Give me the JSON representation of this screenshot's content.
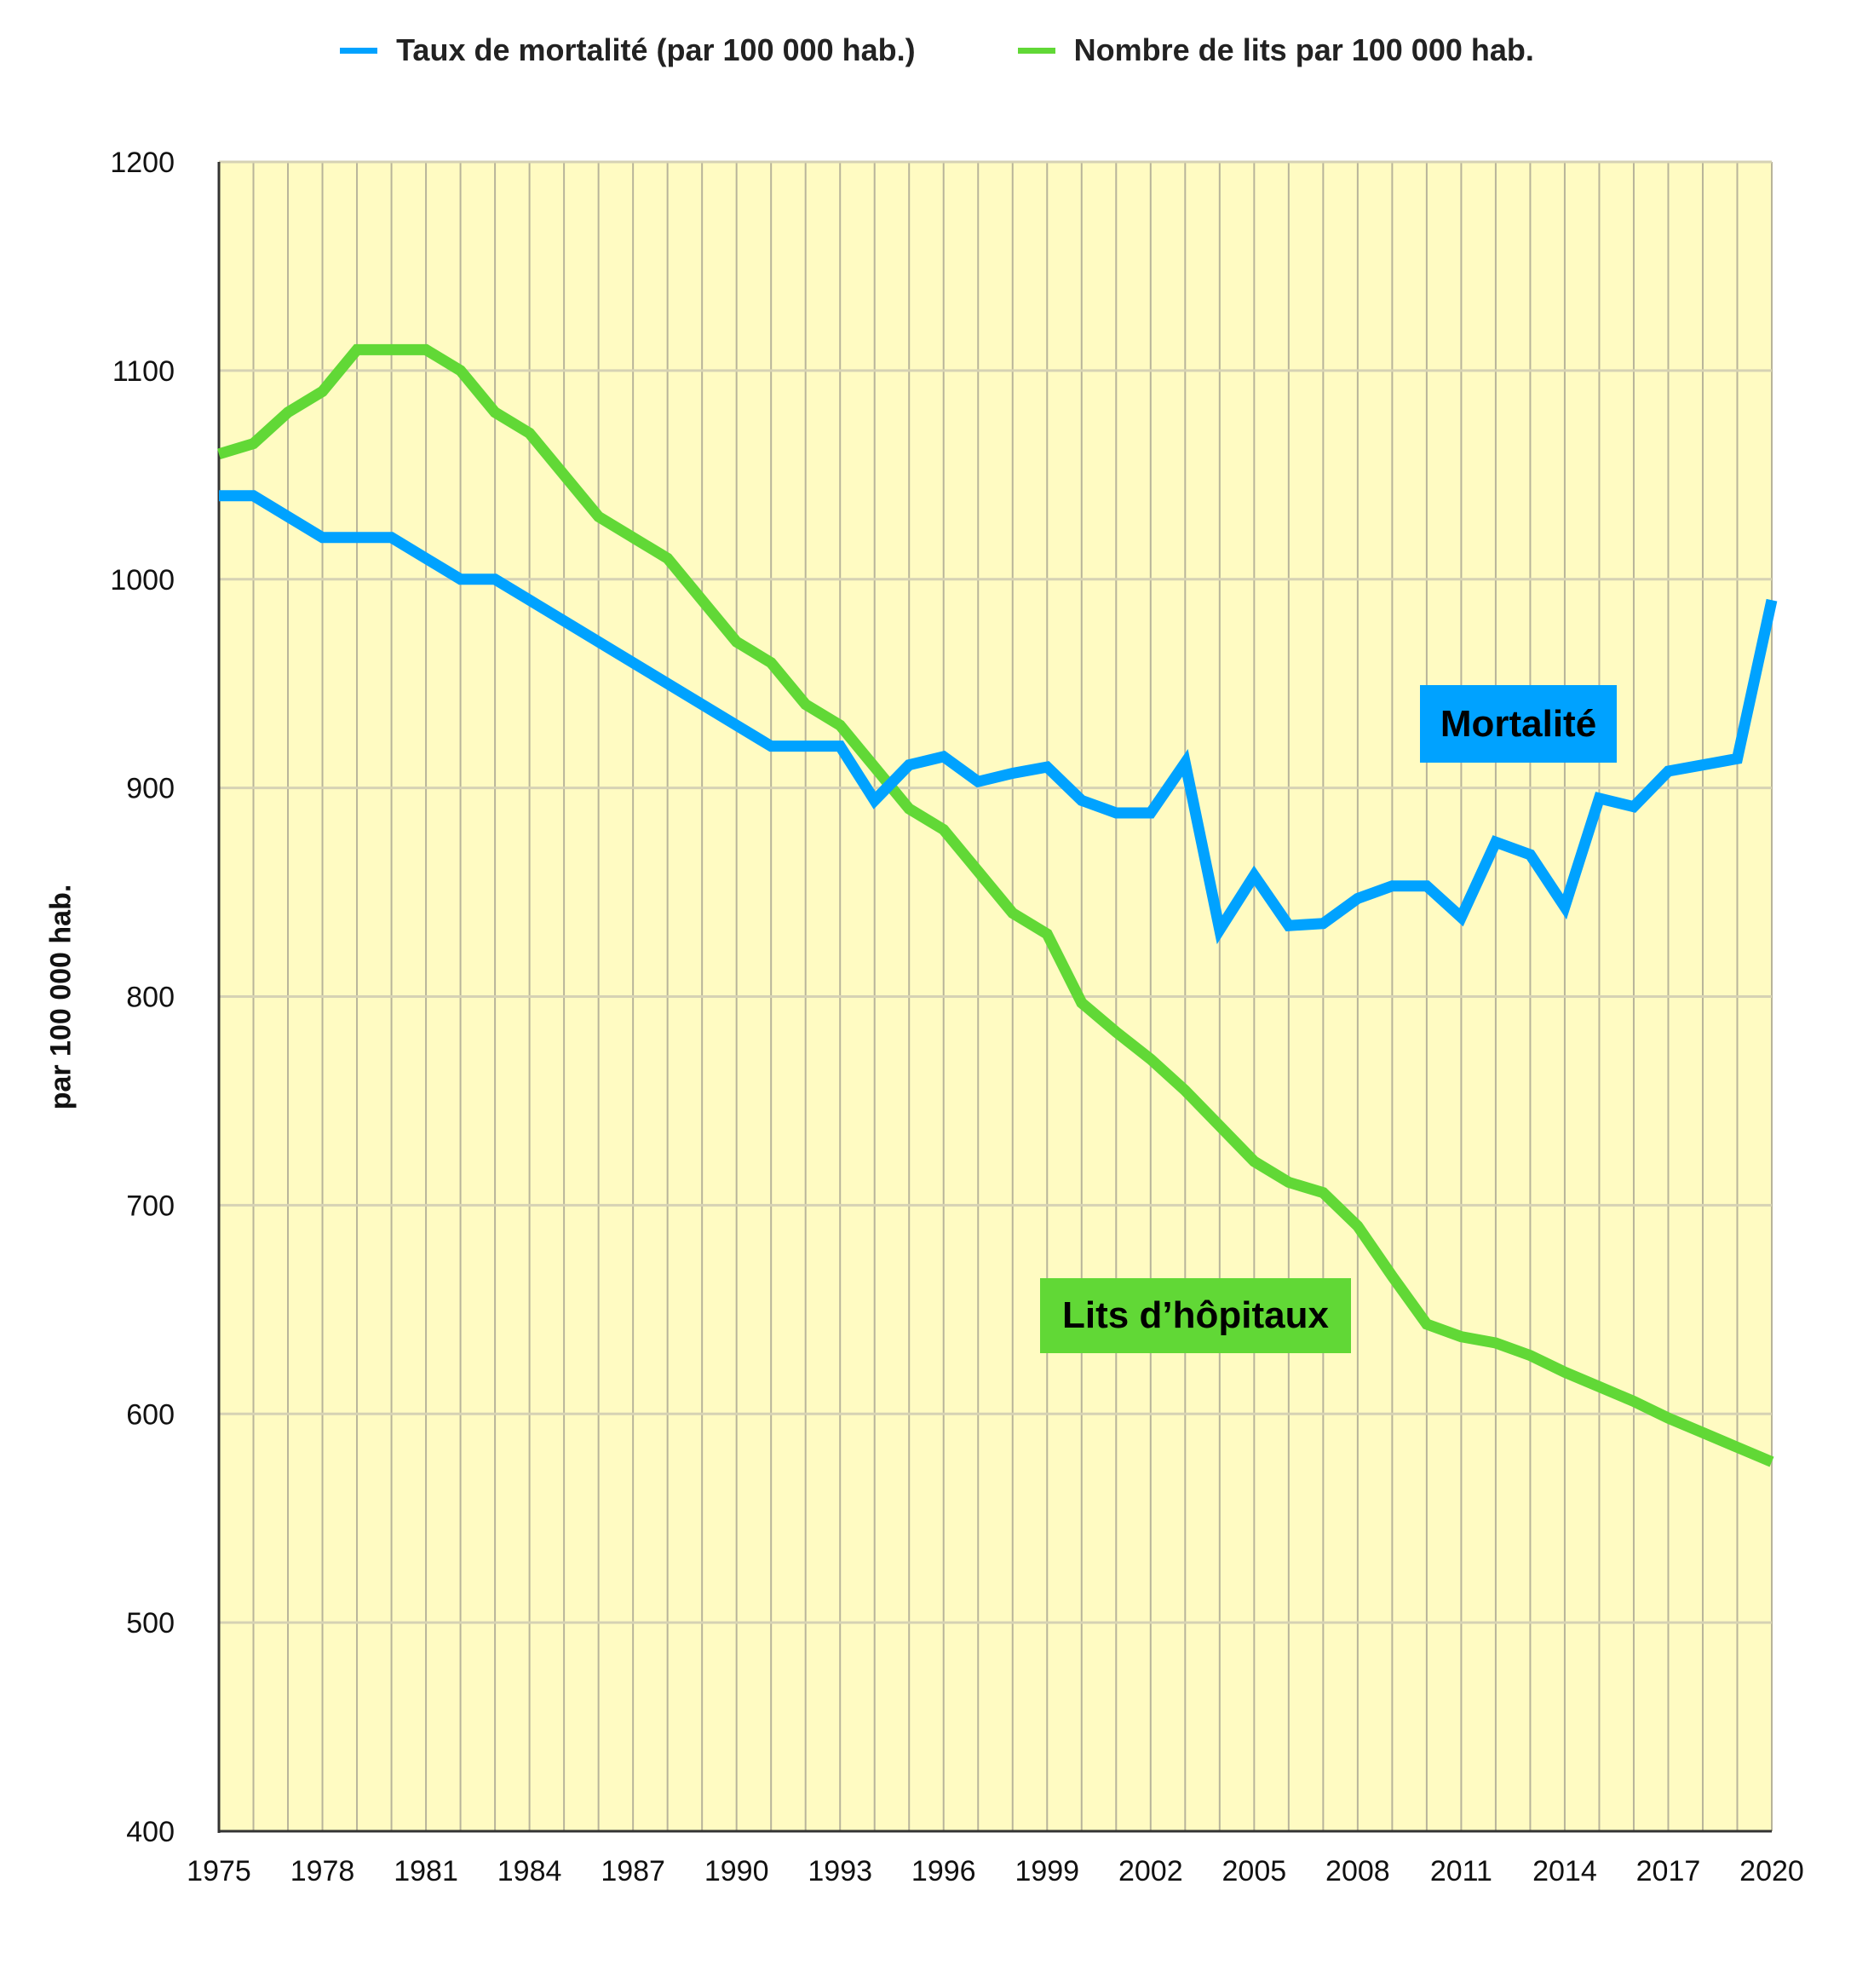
{
  "chart_data": {
    "type": "line",
    "title": "",
    "xlabel": "",
    "ylabel": "par 100 000 hab.",
    "ylim": [
      400,
      1200
    ],
    "xlim": [
      1975,
      2020
    ],
    "yticks": [
      "400",
      "500",
      "600",
      "700",
      "800",
      "900",
      "1000",
      "1100",
      "1200"
    ],
    "xticks": [
      "1975",
      "1978",
      "1981",
      "1984",
      "1987",
      "1990",
      "1993",
      "1996",
      "1999",
      "2002",
      "2005",
      "2008",
      "2011",
      "2014",
      "2017",
      "2020"
    ],
    "grid": true,
    "legend_position": "top",
    "background": "#fffbc2",
    "x": [
      1975,
      1976,
      1977,
      1978,
      1979,
      1980,
      1981,
      1982,
      1983,
      1984,
      1985,
      1986,
      1987,
      1988,
      1989,
      1990,
      1991,
      1992,
      1993,
      1994,
      1995,
      1996,
      1997,
      1998,
      1999,
      2000,
      2001,
      2002,
      2003,
      2004,
      2005,
      2006,
      2007,
      2008,
      2009,
      2010,
      2011,
      2012,
      2013,
      2014,
      2015,
      2016,
      2017,
      2018,
      2019,
      2020
    ],
    "series": [
      {
        "name": "Taux de mortalité (par 100 000 hab.)",
        "color": "#00a2ff",
        "values": [
          1040,
          1040,
          1030,
          1020,
          1020,
          1020,
          1010,
          1000,
          1000,
          990,
          980,
          970,
          960,
          950,
          940,
          930,
          920,
          920,
          920,
          894,
          911,
          915,
          903,
          907,
          910,
          894,
          888,
          888,
          912,
          832,
          858,
          834,
          835,
          847,
          853,
          853,
          838,
          874,
          868,
          843,
          895,
          891,
          908,
          911,
          914,
          990
        ]
      },
      {
        "name": "Nombre de lits par 100 000 hab.",
        "color": "#61d836",
        "values": [
          1060,
          1065,
          1080,
          1090,
          1110,
          1110,
          1110,
          1100,
          1080,
          1070,
          1050,
          1030,
          1020,
          1010,
          990,
          970,
          960,
          940,
          930,
          910,
          890,
          880,
          860,
          840,
          830,
          797,
          783,
          770,
          755,
          738,
          721,
          711,
          706,
          690,
          666,
          643,
          637,
          634,
          628,
          620,
          613,
          606,
          598,
          591,
          584,
          577
        ]
      }
    ],
    "annotations": [
      {
        "text": "Mortalité",
        "color": "#00a2ff"
      },
      {
        "text": "Lits d’hôpitaux",
        "color": "#61d836"
      }
    ]
  }
}
